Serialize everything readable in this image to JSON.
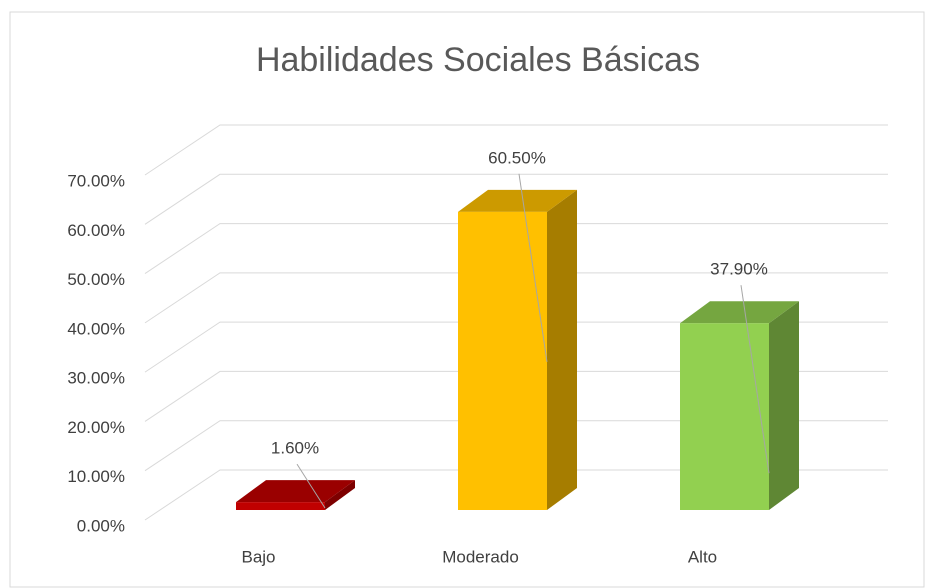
{
  "chart_data": {
    "type": "bar3d",
    "title": "Habilidades Sociales Básicas",
    "categories": [
      "Bajo",
      "Moderado",
      "Alto"
    ],
    "values": [
      1.6,
      60.5,
      37.9
    ],
    "value_labels": [
      "1.60%",
      "60.50%",
      "37.90%"
    ],
    "colors": [
      "#c00000",
      "#ffc000",
      "#92d050"
    ],
    "ylim": [
      0,
      70
    ],
    "yticks": [
      {
        "value": 0,
        "label": "0.00%"
      },
      {
        "value": 10,
        "label": "10.00%"
      },
      {
        "value": 20,
        "label": "20.00%"
      },
      {
        "value": 30,
        "label": "30.00%"
      },
      {
        "value": 40,
        "label": "40.00%"
      },
      {
        "value": 50,
        "label": "50.00%"
      },
      {
        "value": 60,
        "label": "60.00%"
      },
      {
        "value": 70,
        "label": "70.00%"
      }
    ],
    "grid": true
  }
}
